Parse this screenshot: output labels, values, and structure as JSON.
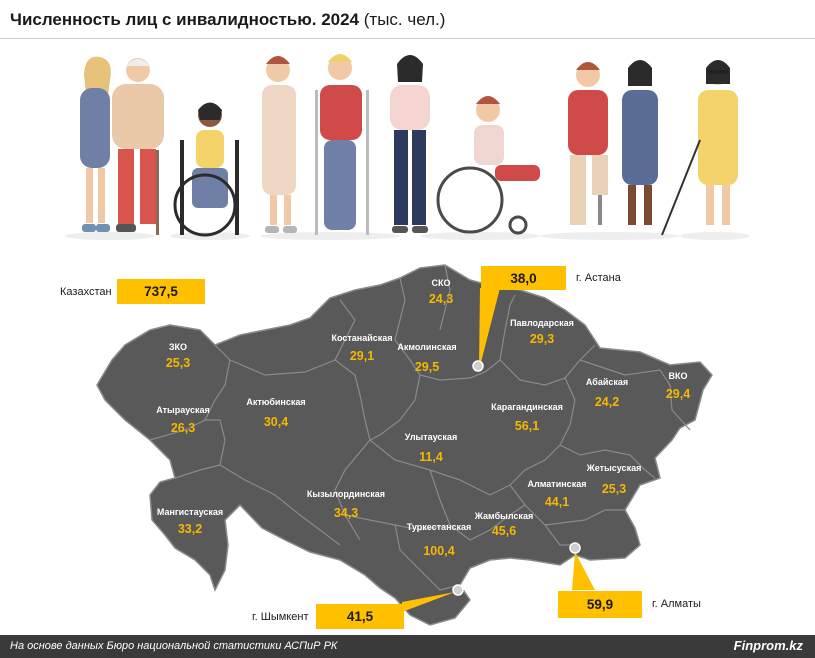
{
  "title": {
    "bold": "Численность лиц с инвалидностью. 2024",
    "unit": "(тыс. чел.)"
  },
  "total": {
    "label": "Казахстан",
    "value": "737,5"
  },
  "cities": {
    "astana": {
      "label": "г. Астана",
      "value": "38,0"
    },
    "almaty": {
      "label": "г. Алматы",
      "value": "59,9"
    },
    "shymkent": {
      "label": "г. Шымкент",
      "value": "41,5"
    }
  },
  "regions": {
    "zko": {
      "name": "ЗКО",
      "value": "25,3"
    },
    "atyrau": {
      "name": "Атырауская",
      "value": "26,3"
    },
    "mangystau": {
      "name": "Мангистауская",
      "value": "33,2"
    },
    "aktobe": {
      "name": "Актюбинская",
      "value": "30,4"
    },
    "kostanay": {
      "name": "Костанайская",
      "value": "29,1"
    },
    "sko": {
      "name": "СКО",
      "value": "24,3"
    },
    "akmola": {
      "name": "Акмолинская",
      "value": "29,5"
    },
    "pavlodar": {
      "name": "Павлодарская",
      "value": "29,3"
    },
    "vko": {
      "name": "ВКО",
      "value": "29,4"
    },
    "abay": {
      "name": "Абайская",
      "value": "24,2"
    },
    "karaganda": {
      "name": "Карагандинская",
      "value": "56,1"
    },
    "ulytau": {
      "name": "Улытауская",
      "value": "11,4"
    },
    "kyzylorda": {
      "name": "Кызылординская",
      "value": "34,3"
    },
    "turkestan": {
      "name": "Туркестанская",
      "value": "100,4"
    },
    "zhambyl": {
      "name": "Жамбылская",
      "value": "45,6"
    },
    "almaty_region": {
      "name": "Алматинская",
      "value": "44,1"
    },
    "zhetysu": {
      "name": "Жетысуская",
      "value": "25,3"
    }
  },
  "footer": {
    "source": "На основе данных Бюро национальной статистики АСПиР РК",
    "brand": "Finprom.kz"
  },
  "colors": {
    "map_fill": "#595959",
    "region_border": "#8a8a8a",
    "value_text": "#f5b800",
    "callout_box": "#ffc000",
    "footer_bg": "#3a3a3a"
  }
}
